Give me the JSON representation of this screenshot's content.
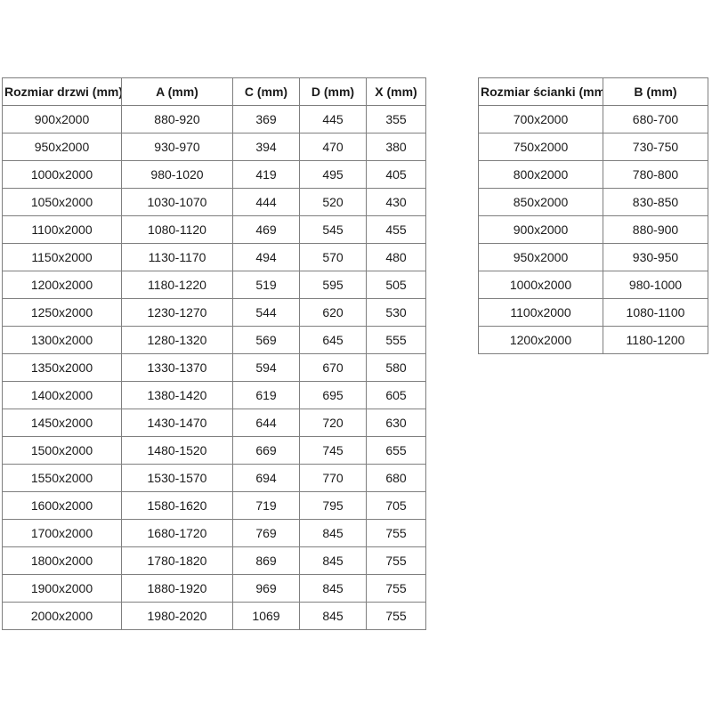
{
  "page": {
    "background_color": "#ffffff",
    "text_color": "#1a1a1a",
    "border_color": "#7f7f7f"
  },
  "door_table": {
    "headers": [
      "Rozmiar drzwi (mm)",
      "A (mm)",
      "C (mm)",
      "D (mm)",
      "X (mm)"
    ],
    "rows": [
      [
        "900x2000",
        "880-920",
        "369",
        "445",
        "355"
      ],
      [
        "950x2000",
        "930-970",
        "394",
        "470",
        "380"
      ],
      [
        "1000x2000",
        "980-1020",
        "419",
        "495",
        "405"
      ],
      [
        "1050x2000",
        "1030-1070",
        "444",
        "520",
        "430"
      ],
      [
        "1100x2000",
        "1080-1120",
        "469",
        "545",
        "455"
      ],
      [
        "1150x2000",
        "1130-1170",
        "494",
        "570",
        "480"
      ],
      [
        "1200x2000",
        "1180-1220",
        "519",
        "595",
        "505"
      ],
      [
        "1250x2000",
        "1230-1270",
        "544",
        "620",
        "530"
      ],
      [
        "1300x2000",
        "1280-1320",
        "569",
        "645",
        "555"
      ],
      [
        "1350x2000",
        "1330-1370",
        "594",
        "670",
        "580"
      ],
      [
        "1400x2000",
        "1380-1420",
        "619",
        "695",
        "605"
      ],
      [
        "1450x2000",
        "1430-1470",
        "644",
        "720",
        "630"
      ],
      [
        "1500x2000",
        "1480-1520",
        "669",
        "745",
        "655"
      ],
      [
        "1550x2000",
        "1530-1570",
        "694",
        "770",
        "680"
      ],
      [
        "1600x2000",
        "1580-1620",
        "719",
        "795",
        "705"
      ],
      [
        "1700x2000",
        "1680-1720",
        "769",
        "845",
        "755"
      ],
      [
        "1800x2000",
        "1780-1820",
        "869",
        "845",
        "755"
      ],
      [
        "1900x2000",
        "1880-1920",
        "969",
        "845",
        "755"
      ],
      [
        "2000x2000",
        "1980-2020",
        "1069",
        "845",
        "755"
      ]
    ]
  },
  "wall_table": {
    "headers": [
      "Rozmiar ścianki (mm)",
      "B (mm)"
    ],
    "rows": [
      [
        "700x2000",
        "680-700"
      ],
      [
        "750x2000",
        "730-750"
      ],
      [
        "800x2000",
        "780-800"
      ],
      [
        "850x2000",
        "830-850"
      ],
      [
        "900x2000",
        "880-900"
      ],
      [
        "950x2000",
        "930-950"
      ],
      [
        "1000x2000",
        "980-1000"
      ],
      [
        "1100x2000",
        "1080-1100"
      ],
      [
        "1200x2000",
        "1180-1200"
      ]
    ]
  }
}
